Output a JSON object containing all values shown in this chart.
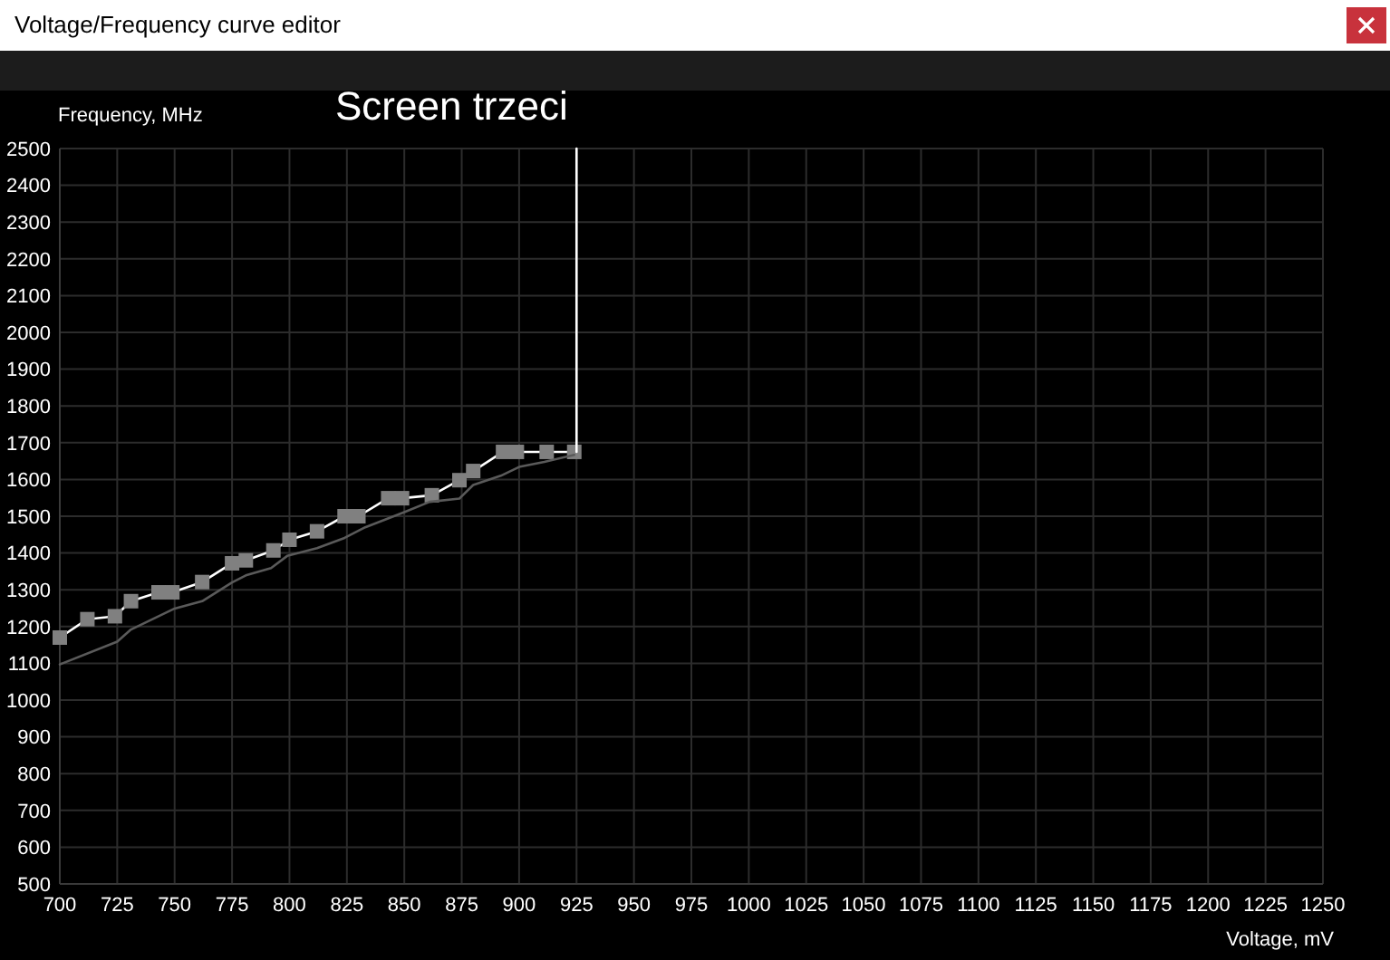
{
  "chart_data": {
    "type": "line",
    "title": "Voltage/Frequency curve editor",
    "annotations": [
      "Screen trzeci"
    ],
    "xlabel": "Voltage, mV",
    "ylabel": "Frequency, MHz",
    "xlim": [
      700,
      1250
    ],
    "xticks": [
      700,
      725,
      750,
      775,
      800,
      825,
      850,
      875,
      900,
      925,
      950,
      975,
      1000,
      1025,
      1050,
      1075,
      1100,
      1125,
      1150,
      1175,
      1200,
      1225,
      1250
    ],
    "ylim": [
      500,
      2500
    ],
    "yticks": [
      500,
      600,
      700,
      800,
      900,
      1000,
      1100,
      1200,
      1300,
      1400,
      1500,
      1600,
      1700,
      1800,
      1900,
      2000,
      2100,
      2200,
      2300,
      2400,
      2500
    ],
    "grid": true,
    "series": [
      {
        "color": "#ffffff",
        "marker": "square",
        "x": [
          700,
          712,
          724,
          731,
          743,
          749,
          762,
          775,
          781,
          793,
          800,
          812,
          824,
          830,
          843,
          849,
          862,
          874,
          880,
          893,
          899,
          912,
          924
        ],
        "values": [
          1170,
          1220,
          1228,
          1269,
          1293,
          1293,
          1321,
          1372,
          1380,
          1407,
          1436,
          1459,
          1500,
          1500,
          1549,
          1549,
          1557,
          1598,
          1623,
          1675,
          1675,
          1675,
          1675
        ]
      },
      {
        "color": "#5a5a5a",
        "marker": "none",
        "x": [
          700,
          725,
          731,
          750,
          762,
          775,
          781,
          792,
          799,
          812,
          824,
          833,
          850,
          861,
          874,
          880,
          892,
          900,
          911,
          924
        ],
        "values": [
          1097,
          1159,
          1192,
          1249,
          1269,
          1320,
          1339,
          1359,
          1392,
          1413,
          1441,
          1470,
          1511,
          1539,
          1548,
          1585,
          1610,
          1634,
          1648,
          1667
        ]
      },
      {
        "color": "#ffffff",
        "marker": "none",
        "x": [
          925,
          925
        ],
        "values": [
          1675,
          2500
        ]
      }
    ]
  }
}
